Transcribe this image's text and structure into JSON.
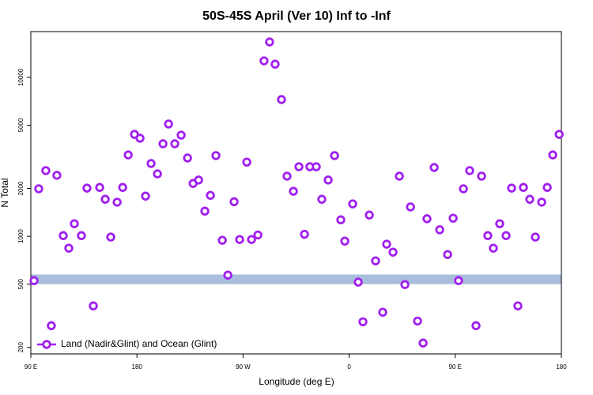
{
  "chart_data": {
    "type": "scatter",
    "title": "50S-45S April (Ver 10)   Inf to -Inf",
    "x_label": "Longitude (deg E)",
    "y_label": "N Total",
    "xlim": [
      90,
      540
    ],
    "xticks": [
      {
        "value": 90,
        "label": "90 E"
      },
      180,
      {
        "value": 270,
        "label": "90 W"
      },
      {
        "value": 360,
        "label": "0"
      },
      {
        "value": 450,
        "label": "90 E"
      },
      {
        "value": 540,
        "label": "180"
      }
    ],
    "ylim": [
      182,
      19400
    ],
    "yticks": [
      200,
      500,
      1000,
      2000,
      5000,
      10000
    ],
    "ylog": true,
    "legend": "bottom-left",
    "band": {
      "range": [
        500,
        575
      ],
      "color": "#a8bedc"
    },
    "series": [
      {
        "name": "Land (Nadir&Glint) and Ocean (Glint)",
        "color": "#a020f0",
        "x": [
          92.7,
          96.7,
          102.7,
          107.4,
          112.1,
          117.5,
          122.2,
          126.9,
          132.9,
          137.6,
          143.0,
          148.4,
          153.1,
          157.8,
          163.2,
          167.9,
          172.6,
          177.9,
          182.6,
          187.3,
          192.0,
          197.4,
          202.1,
          206.8,
          212.1,
          217.5,
          222.9,
          227.6,
          232.3,
          237.6,
          242.3,
          247.0,
          252.4,
          257.1,
          262.4,
          267.1,
          273.2,
          277.2,
          282.6,
          287.8,
          292.5,
          297.2,
          302.6,
          307.3,
          312.7,
          317.4,
          322.1,
          326.7,
          332.1,
          336.8,
          342.2,
          347.6,
          352.9,
          356.3,
          363.0,
          367.7,
          371.7,
          377.1,
          382.4,
          388.5,
          391.8,
          397.2,
          402.6,
          407.3,
          412.0,
          418.0,
          422.7,
          426.0,
          432.1,
          436.8,
          443.5,
          448.2,
          452.8,
          456.9,
          462.2,
          467.6,
          472.3,
          477.6,
          482.3,
          487.7,
          493.1,
          497.8,
          503.1,
          507.8,
          513.2,
          517.9,
          523.3,
          528.0,
          532.7,
          538.1
        ],
        "values": [
          526,
          1990,
          2590,
          274,
          2420,
          1010,
          842,
          1200,
          1010,
          2010,
          365,
          2030,
          1710,
          989,
          1640,
          2030,
          3250,
          4380,
          4140,
          1790,
          2870,
          2470,
          3820,
          5090,
          3820,
          4330,
          3110,
          2150,
          2260,
          1440,
          1810,
          3220,
          944,
          570,
          1650,
          955,
          2930,
          955,
          1020,
          12700,
          16700,
          12100,
          7250,
          2390,
          1920,
          2740,
          1030,
          2740,
          2740,
          1710,
          2260,
          3220,
          1270,
          933,
          1600,
          515,
          290,
          1360,
          701,
          333,
          892,
          795,
          2390,
          497,
          1530,
          293,
          213,
          1290,
          2710,
          1100,
          768,
          1300,
          526,
          1990,
          2590,
          274,
          2390,
          1010,
          842,
          1200,
          1010,
          2010,
          365,
          2030,
          1710,
          989,
          1640,
          2030,
          3250,
          4380
        ]
      }
    ]
  }
}
